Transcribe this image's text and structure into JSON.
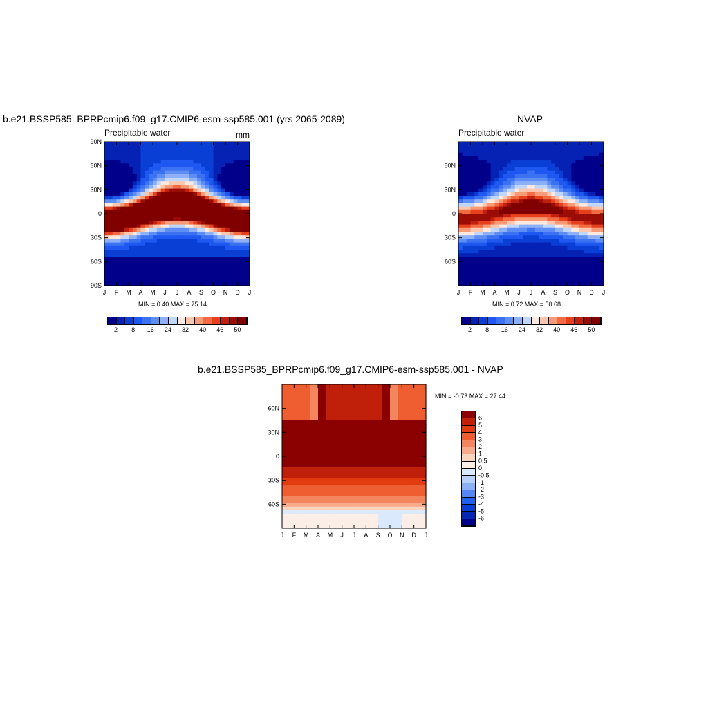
{
  "colors": {
    "abs_levels": [
      "#00008b",
      "#0622b5",
      "#0a3fd6",
      "#1e58f0",
      "#3a72f2",
      "#5e8ef4",
      "#8eb0f7",
      "#c0d6fb",
      "#fbe8de",
      "#fbc7ae",
      "#f79a76",
      "#f36b43",
      "#e6401c",
      "#c2200e",
      "#9a0c06",
      "#800000"
    ],
    "diff_levels": [
      "#00008b",
      "#0626b4",
      "#0a3ed6",
      "#2260f0",
      "#5586f4",
      "#8bb0f7",
      "#b8d0fb",
      "#dbe9fc",
      "#fbeee6",
      "#fbd4c0",
      "#f7ab8a",
      "#f3865f",
      "#ee5e30",
      "#e03c10",
      "#c0200a",
      "#8b0000"
    ]
  },
  "chart_data": [
    {
      "id": "model",
      "type": "heatmap",
      "title": "b.e21.BSSP585_BPRPcmip6.f09_g17.CMIP6-esm-ssp585.001 (yrs 2065-2089)",
      "left_label": "Precipitable water",
      "units": "mm",
      "x_ticks": [
        "J",
        "F",
        "M",
        "A",
        "M",
        "J",
        "J",
        "A",
        "S",
        "O",
        "N",
        "D",
        "J"
      ],
      "y_ticks": [
        "90N",
        "60N",
        "30N",
        "0",
        "30S",
        "60S",
        "90S"
      ],
      "y_tick_values": [
        90,
        60,
        30,
        0,
        -30,
        -60,
        -90
      ],
      "ylim": [
        -90,
        90
      ],
      "min_max_text": "MIN =   0.40 MAX =  75.14",
      "colorbar_labels": [
        "2",
        "8",
        "16",
        "24",
        "32",
        "40",
        "46",
        "50"
      ],
      "field": {
        "base": 5.0,
        "peak": 75.0,
        "width": 22,
        "itcz_amp": 8,
        "north_summer_boost": 18,
        "south_low": -4
      }
    },
    {
      "id": "obs",
      "type": "heatmap",
      "title": "NVAP",
      "left_label": "Precipitable water",
      "x_ticks": [
        "J",
        "F",
        "M",
        "A",
        "M",
        "J",
        "J",
        "A",
        "S",
        "O",
        "N",
        "D",
        "J"
      ],
      "y_ticks": [
        "60N",
        "30N",
        "0",
        "30S",
        "60S"
      ],
      "y_tick_values": [
        60,
        30,
        0,
        -30,
        -60
      ],
      "ylim": [
        -90,
        90
      ],
      "min_max_text": "MIN =   0.72 MAX =  50.68",
      "colorbar_labels": [
        "2",
        "8",
        "16",
        "24",
        "32",
        "40",
        "46",
        "50"
      ],
      "field": {
        "base": 3.0,
        "peak": 50.0,
        "width": 24,
        "itcz_amp": 7,
        "north_summer_boost": 12,
        "south_low": -3
      }
    },
    {
      "id": "diff",
      "type": "heatmap",
      "title": "b.e21.BSSP585_BPRPcmip6.f09_g17.CMIP6-esm-ssp585.001 - NVAP",
      "x_ticks": [
        "J",
        "F",
        "M",
        "A",
        "M",
        "J",
        "J",
        "A",
        "S",
        "O",
        "N",
        "D",
        "J"
      ],
      "y_ticks": [
        "60N",
        "30N",
        "0",
        "30S",
        "60S"
      ],
      "y_tick_values": [
        60,
        30,
        0,
        -30,
        -60
      ],
      "ylim": [
        -90,
        90
      ],
      "min_max_text": "MIN =  -0.73 MAX =  27.44",
      "colorbar_labels": [
        "6",
        "5",
        "4",
        "3",
        "2",
        "1",
        "0.5",
        "0",
        "-0.5",
        "-1",
        "-2",
        "-3",
        "-4",
        "-5",
        "-6"
      ]
    }
  ]
}
